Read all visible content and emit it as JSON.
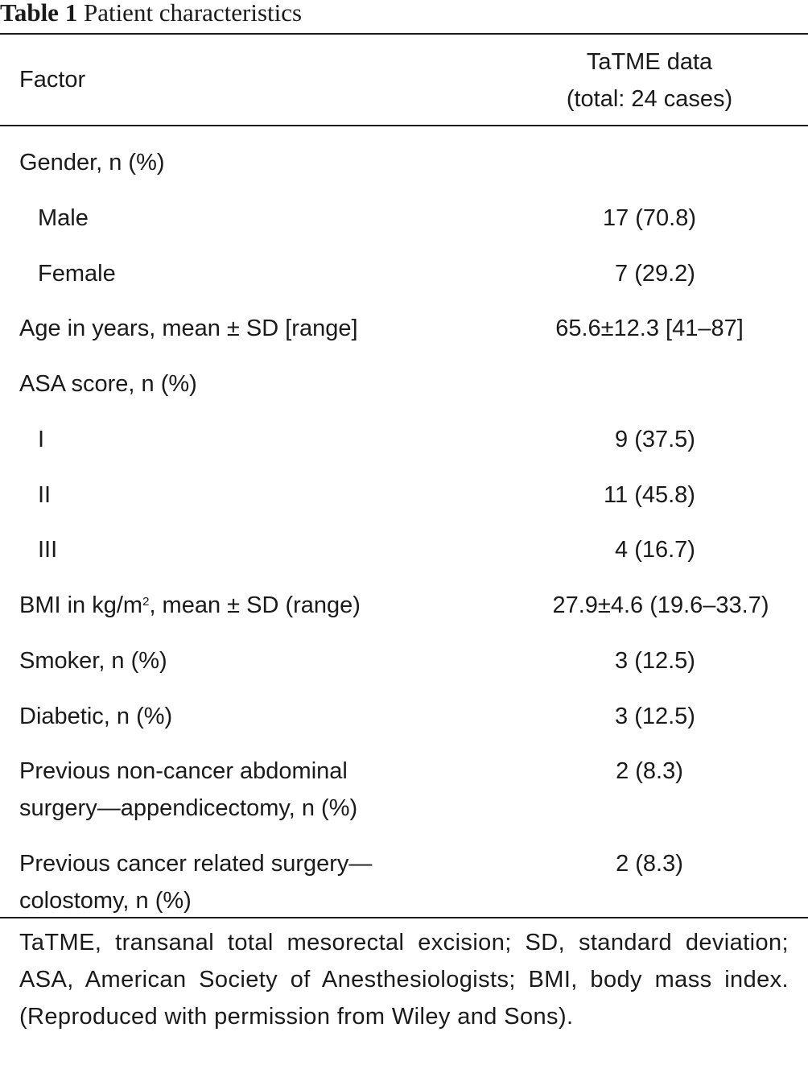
{
  "caption": {
    "label": "Table 1",
    "title": "Patient characteristics"
  },
  "header": {
    "factor": "Factor",
    "data_line1": "TaTME data",
    "data_line2": "(total: 24 cases)"
  },
  "rows": [
    {
      "factor": "Gender, n (%)",
      "value": ""
    },
    {
      "factor": "Male",
      "value": "17 (70.8)"
    },
    {
      "factor": "Female",
      "value": "7 (29.2)"
    },
    {
      "factor": "Age in years, mean ± SD [range]",
      "value": "65.6±12.3 [41–87]"
    },
    {
      "factor": "ASA score, n (%)",
      "value": ""
    },
    {
      "factor": "I",
      "value": "9 (37.5)"
    },
    {
      "factor": "II",
      "value": "11 (45.8)"
    },
    {
      "factor": "III",
      "value": "4 (16.7)"
    },
    {
      "factor_pre": "BMI in kg/m",
      "factor_sup": "2",
      "factor_post": ", mean ± SD (range)",
      "value": "27.9±4.6 (19.6–33.7)"
    },
    {
      "factor": "Smoker, n (%)",
      "value": "3 (12.5)"
    },
    {
      "factor": "Diabetic, n (%)",
      "value": "3 (12.5)"
    },
    {
      "factor": "Previous non-cancer abdominal surgery—appendicectomy, n (%)",
      "value": "2 (8.3)"
    },
    {
      "factor": "Previous cancer related surgery—colostomy, n (%)",
      "value": "2 (8.3)"
    }
  ],
  "footnote": "TaTME, transanal total mesorectal excision; SD, standard deviation; ASA, American Society of Anesthesiologists; BMI, body mass index. (Reproduced with permission from Wiley and Sons)."
}
